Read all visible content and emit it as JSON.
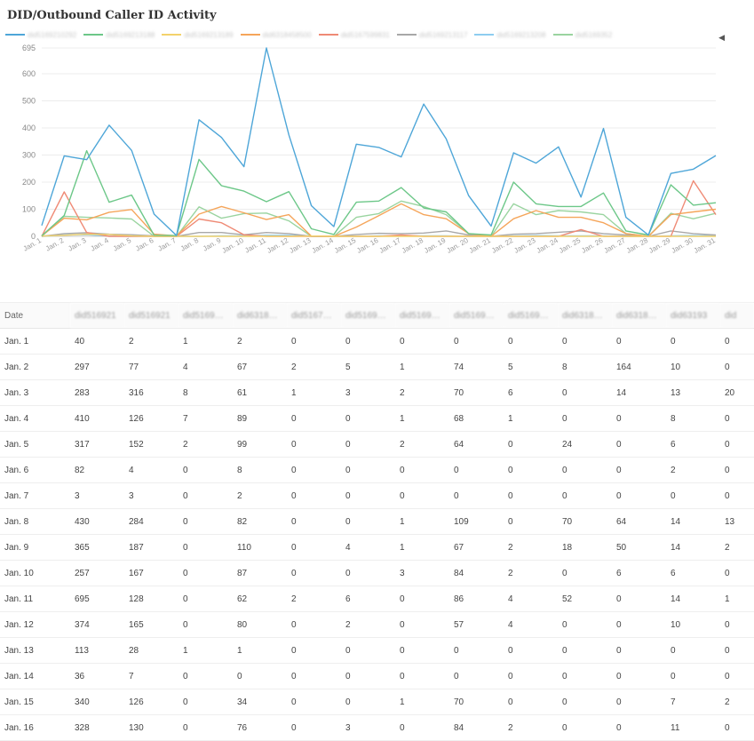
{
  "page": {
    "title": "DID/Outbound Caller ID Activity",
    "legend_arrow": "◀"
  },
  "chart_data": {
    "type": "line",
    "title": "DID/Outbound Caller ID Activity",
    "xlabel": "",
    "ylabel": "",
    "ylim": [
      0,
      695
    ],
    "yticks": [
      0,
      100,
      200,
      300,
      400,
      500,
      600,
      695
    ],
    "categories": [
      "Jan. 1",
      "Jan. 2",
      "Jan. 3",
      "Jan. 4",
      "Jan. 5",
      "Jan. 6",
      "Jan. 7",
      "Jan. 8",
      "Jan. 9",
      "Jan. 10",
      "Jan. 11",
      "Jan. 12",
      "Jan. 13",
      "Jan. 14",
      "Jan. 15",
      "Jan. 16",
      "Jan. 17",
      "Jan. 18",
      "Jan. 19",
      "Jan. 20",
      "Jan. 21",
      "Jan. 22",
      "Jan. 23",
      "Jan. 24",
      "Jan. 25",
      "Jan. 26",
      "Jan. 27",
      "Jan. 28",
      "Jan. 29",
      "Jan. 30",
      "Jan. 31"
    ],
    "series": [
      {
        "name": "did5169210292",
        "color": "#4ea6d8",
        "values": [
          40,
          297,
          283,
          410,
          317,
          82,
          3,
          430,
          365,
          257,
          695,
          374,
          113,
          36,
          340,
          328,
          293,
          488,
          360,
          150,
          38,
          308,
          270,
          330,
          145,
          398,
          70,
          5,
          232,
          248,
          298
        ]
      },
      {
        "name": "did5169213188",
        "color": "#6cc788",
        "values": [
          2,
          77,
          316,
          126,
          152,
          4,
          3,
          284,
          187,
          167,
          128,
          165,
          28,
          7,
          126,
          130,
          180,
          105,
          90,
          10,
          5,
          200,
          120,
          110,
          110,
          160,
          20,
          5,
          190,
          115,
          124
        ]
      },
      {
        "name": "did5169213189",
        "color": "#f3d26b",
        "values": [
          1,
          4,
          8,
          7,
          2,
          0,
          0,
          0,
          0,
          0,
          0,
          0,
          1,
          0,
          0,
          0,
          0,
          0,
          0,
          0,
          0,
          0,
          0,
          0,
          0,
          0,
          0,
          0,
          0,
          0,
          0
        ]
      },
      {
        "name": "did6318458500",
        "color": "#f5a55a",
        "values": [
          2,
          67,
          61,
          89,
          99,
          8,
          2,
          82,
          110,
          87,
          62,
          80,
          1,
          0,
          34,
          76,
          120,
          80,
          65,
          10,
          0,
          65,
          95,
          70,
          70,
          50,
          10,
          0,
          80,
          90,
          100
        ]
      },
      {
        "name": "did5167599831",
        "color": "#ef8a75",
        "values": [
          0,
          164,
          14,
          0,
          0,
          0,
          0,
          64,
          50,
          6,
          0,
          0,
          0,
          0,
          0,
          0,
          5,
          0,
          0,
          0,
          0,
          0,
          0,
          0,
          25,
          0,
          0,
          0,
          0,
          205,
          80
        ]
      },
      {
        "name": "did5169213117",
        "color": "#a8a8a8",
        "values": [
          0,
          10,
          13,
          8,
          6,
          2,
          0,
          14,
          14,
          6,
          14,
          10,
          0,
          0,
          7,
          11,
          10,
          12,
          20,
          5,
          0,
          8,
          10,
          15,
          20,
          10,
          5,
          0,
          20,
          10,
          5
        ]
      },
      {
        "name": "did5169213208",
        "color": "#8ecdf0",
        "values": [
          0,
          5,
          6,
          1,
          0,
          0,
          0,
          0,
          2,
          2,
          4,
          4,
          0,
          0,
          0,
          2,
          2,
          2,
          2,
          0,
          0,
          2,
          3,
          2,
          2,
          2,
          0,
          0,
          2,
          3,
          2
        ]
      },
      {
        "name": "did5169352",
        "color": "#9ad4a0",
        "values": [
          0,
          74,
          70,
          68,
          64,
          0,
          0,
          109,
          67,
          84,
          86,
          57,
          0,
          0,
          70,
          84,
          130,
          110,
          80,
          10,
          0,
          120,
          80,
          95,
          90,
          80,
          10,
          0,
          85,
          65,
          85
        ]
      }
    ]
  },
  "table": {
    "headers": [
      "Date",
      "did516921",
      "did516921",
      "did5169…",
      "did6318…",
      "did5167…",
      "did5169…",
      "did5169…",
      "did5169…",
      "did5169…",
      "did6318…",
      "did6318…",
      "did63193",
      "did"
    ],
    "rows": [
      [
        "Jan. 1",
        "40",
        "2",
        "1",
        "2",
        "0",
        "0",
        "0",
        "0",
        "0",
        "0",
        "0",
        "0",
        "0"
      ],
      [
        "Jan. 2",
        "297",
        "77",
        "4",
        "67",
        "2",
        "5",
        "1",
        "74",
        "5",
        "8",
        "164",
        "10",
        "0"
      ],
      [
        "Jan. 3",
        "283",
        "316",
        "8",
        "61",
        "1",
        "3",
        "2",
        "70",
        "6",
        "0",
        "14",
        "13",
        "20"
      ],
      [
        "Jan. 4",
        "410",
        "126",
        "7",
        "89",
        "0",
        "0",
        "1",
        "68",
        "1",
        "0",
        "0",
        "8",
        "0"
      ],
      [
        "Jan. 5",
        "317",
        "152",
        "2",
        "99",
        "0",
        "0",
        "2",
        "64",
        "0",
        "24",
        "0",
        "6",
        "0"
      ],
      [
        "Jan. 6",
        "82",
        "4",
        "0",
        "8",
        "0",
        "0",
        "0",
        "0",
        "0",
        "0",
        "0",
        "2",
        "0"
      ],
      [
        "Jan. 7",
        "3",
        "3",
        "0",
        "2",
        "0",
        "0",
        "0",
        "0",
        "0",
        "0",
        "0",
        "0",
        "0"
      ],
      [
        "Jan. 8",
        "430",
        "284",
        "0",
        "82",
        "0",
        "0",
        "1",
        "109",
        "0",
        "70",
        "64",
        "14",
        "13"
      ],
      [
        "Jan. 9",
        "365",
        "187",
        "0",
        "110",
        "0",
        "4",
        "1",
        "67",
        "2",
        "18",
        "50",
        "14",
        "2"
      ],
      [
        "Jan. 10",
        "257",
        "167",
        "0",
        "87",
        "0",
        "0",
        "3",
        "84",
        "2",
        "0",
        "6",
        "6",
        "0"
      ],
      [
        "Jan. 11",
        "695",
        "128",
        "0",
        "62",
        "2",
        "6",
        "0",
        "86",
        "4",
        "52",
        "0",
        "14",
        "1"
      ],
      [
        "Jan. 12",
        "374",
        "165",
        "0",
        "80",
        "0",
        "2",
        "0",
        "57",
        "4",
        "0",
        "0",
        "10",
        "0"
      ],
      [
        "Jan. 13",
        "113",
        "28",
        "1",
        "1",
        "0",
        "0",
        "0",
        "0",
        "0",
        "0",
        "0",
        "0",
        "0"
      ],
      [
        "Jan. 14",
        "36",
        "7",
        "0",
        "0",
        "0",
        "0",
        "0",
        "0",
        "0",
        "0",
        "0",
        "0",
        "0"
      ],
      [
        "Jan. 15",
        "340",
        "126",
        "0",
        "34",
        "0",
        "0",
        "1",
        "70",
        "0",
        "0",
        "0",
        "7",
        "2"
      ],
      [
        "Jan. 16",
        "328",
        "130",
        "0",
        "76",
        "0",
        "3",
        "0",
        "84",
        "2",
        "0",
        "0",
        "11",
        "0"
      ]
    ]
  }
}
